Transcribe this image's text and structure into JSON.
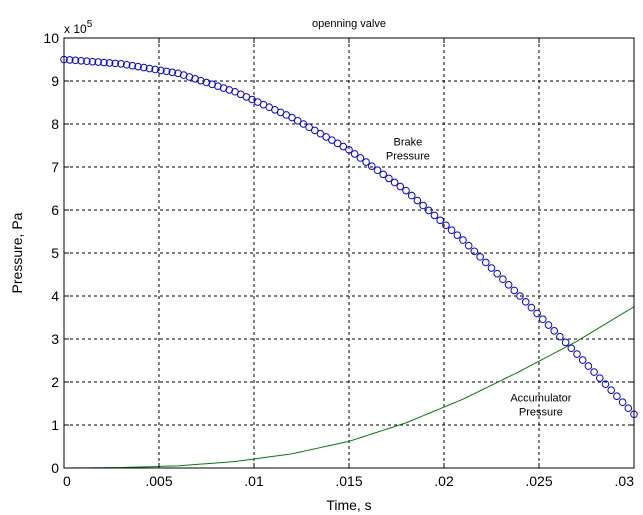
{
  "chart_data": {
    "type": "line",
    "title": "openning valve",
    "xlabel": "Time, s",
    "ylabel": "Pressure, Pa",
    "y_multiplier": {
      "base": "x 10",
      "exponent": "5"
    },
    "xlim": [
      0,
      0.03
    ],
    "ylim": [
      0,
      10
    ],
    "x_ticks": [
      0,
      0.005,
      0.01,
      0.015,
      0.02,
      0.025,
      0.03
    ],
    "x_tick_labels": [
      "0",
      ".005",
      ".01",
      ".015",
      ".02",
      ".025",
      ".03"
    ],
    "y_ticks": [
      0,
      1,
      2,
      3,
      4,
      5,
      6,
      7,
      8,
      9,
      10
    ],
    "y_tick_labels": [
      "0",
      "1",
      "2",
      "3",
      "4",
      "5",
      "6",
      "7",
      "8",
      "9",
      "10"
    ],
    "grid": true,
    "series": [
      {
        "name": "Brake Pressure",
        "style": "circle-markers",
        "color": "#0000ff",
        "x": [
          0,
          0.003,
          0.006,
          0.009,
          0.012,
          0.015,
          0.018,
          0.021,
          0.024,
          0.027,
          0.03
        ],
        "y": [
          9.5,
          9.4,
          9.18,
          8.75,
          8.15,
          7.4,
          6.45,
          5.3,
          4.0,
          2.65,
          1.25
        ]
      },
      {
        "name": "Accumulator Pressure",
        "style": "line",
        "color": "#007f00",
        "x": [
          0,
          0.003,
          0.006,
          0.009,
          0.012,
          0.015,
          0.018,
          0.021,
          0.024,
          0.027,
          0.03
        ],
        "y": [
          0,
          0.01,
          0.05,
          0.15,
          0.33,
          0.62,
          1.05,
          1.6,
          2.25,
          2.95,
          3.75
        ]
      }
    ],
    "annotations": [
      {
        "lines": [
          "Brake",
          "Pressure"
        ],
        "x": 0.0181,
        "y": 7.5
      },
      {
        "lines": [
          "Accumulator",
          "Pressure"
        ],
        "x": 0.0251,
        "y": 1.55
      }
    ]
  }
}
